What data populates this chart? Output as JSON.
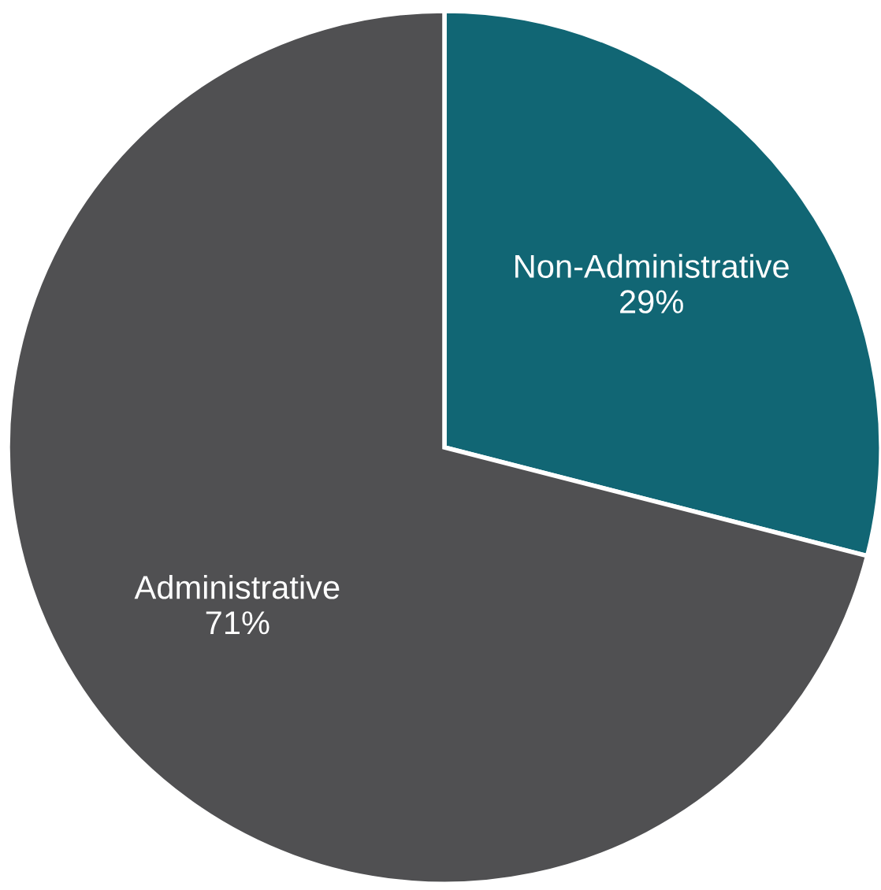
{
  "chart_data": {
    "type": "pie",
    "categories": [
      "Non-Administrative",
      "Administrative"
    ],
    "values": [
      29,
      71
    ],
    "colors": [
      "#116674",
      "#505052"
    ],
    "value_labels": [
      "29%",
      "71%"
    ],
    "legend": false
  }
}
